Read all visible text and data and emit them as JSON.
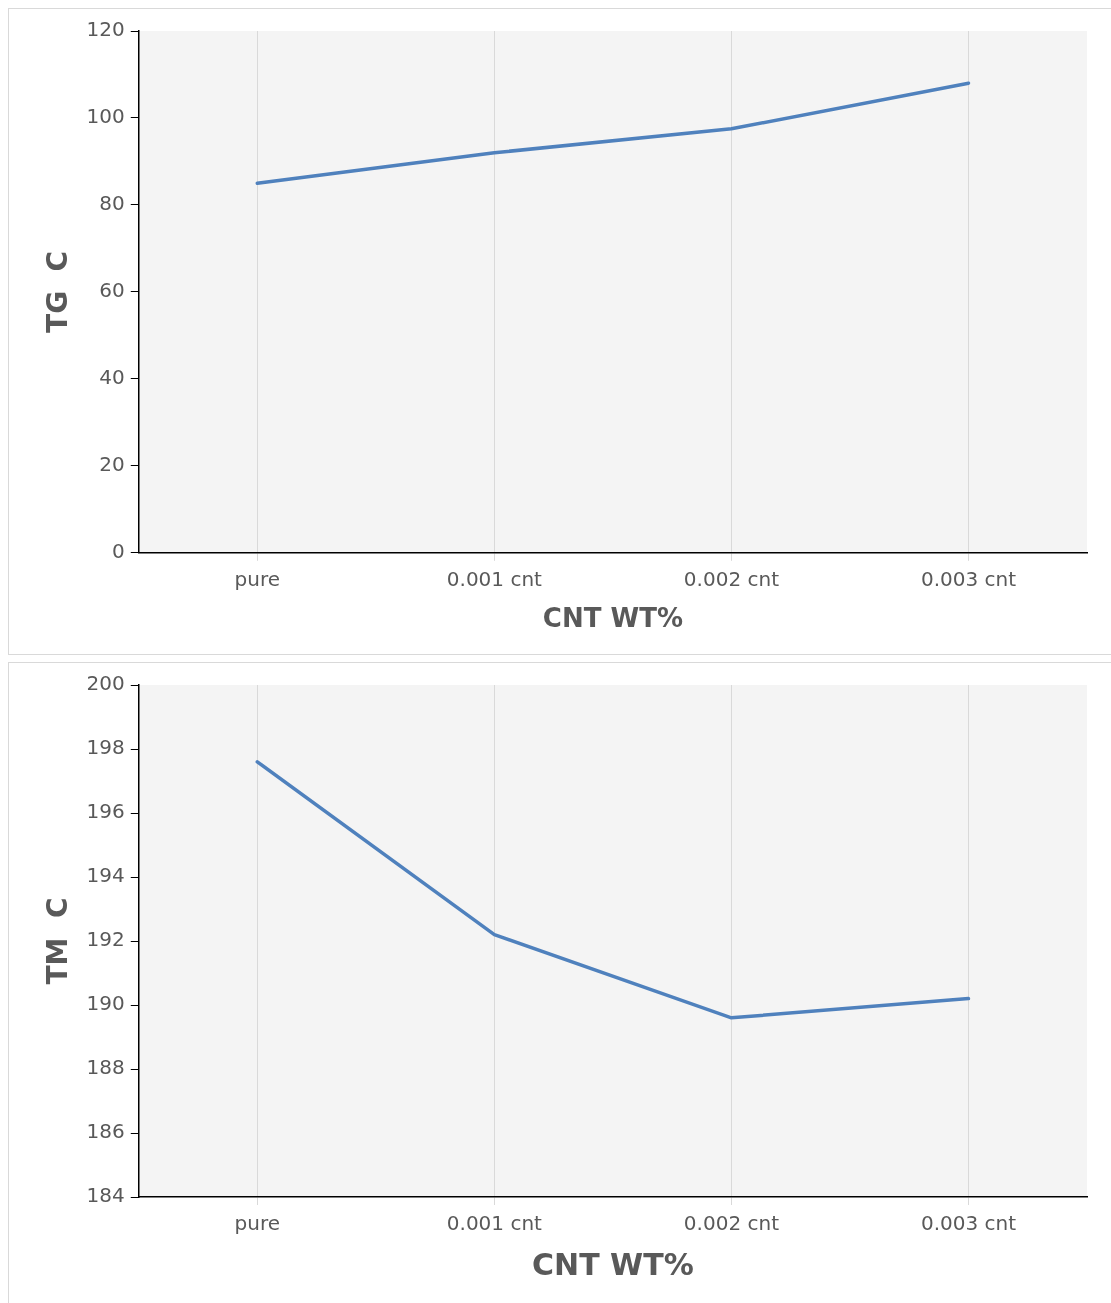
{
  "chart_data": [
    {
      "type": "line",
      "xlabel": "CNT WT%",
      "ylabel": "TG  C",
      "categories": [
        "pure",
        "0.001 cnt",
        "0.002 cnt",
        "0.003 cnt"
      ],
      "series": [
        {
          "color": "#4f81bd",
          "values": [
            85,
            92,
            97.5,
            108
          ]
        }
      ],
      "ylim": [
        0,
        120
      ],
      "yticks": [
        0,
        20,
        40,
        60,
        80,
        100,
        120
      ],
      "grid": "x",
      "legend": false,
      "marker": "none",
      "line_style": "solid"
    },
    {
      "type": "line",
      "xlabel": "CNT WT%",
      "ylabel": "TM  C",
      "categories": [
        "pure",
        "0.001 cnt",
        "0.002 cnt",
        "0.003 cnt"
      ],
      "series": [
        {
          "color": "#4f81bd",
          "values": [
            197.6,
            192.2,
            189.6,
            190.2
          ]
        }
      ],
      "ylim": [
        184,
        200
      ],
      "yticks": [
        184,
        186,
        188,
        190,
        192,
        194,
        196,
        198,
        200
      ],
      "grid": "x",
      "legend": false,
      "marker": "none",
      "line_style": "solid"
    }
  ]
}
